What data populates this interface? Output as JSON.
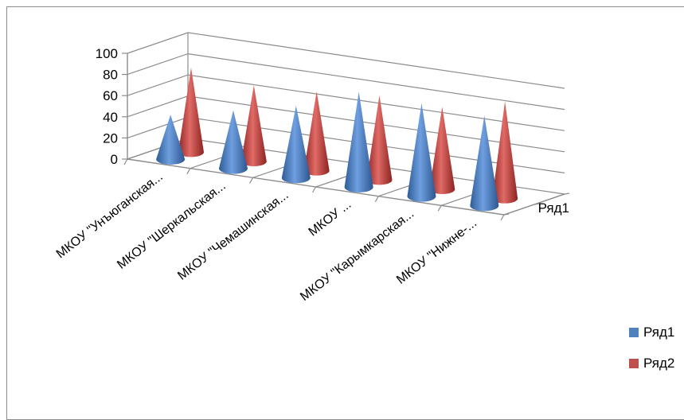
{
  "chart_data": {
    "type": "bar",
    "subtype": "3d-cone",
    "categories": [
      "МКОУ \"Унъюганская...",
      "МКОУ \"Шеркальская...",
      "МКОУ \"Чемашинская...",
      "МКОУ ...",
      "МКОУ \"Карымкарская...",
      "МКОУ \"Нижне-..."
    ],
    "series": [
      {
        "name": "Ряд1",
        "values": [
          42,
          55,
          68,
          90,
          88,
          85
        ]
      },
      {
        "name": "Ряд2",
        "values": [
          80,
          72,
          75,
          80,
          78,
          92
        ]
      }
    ],
    "y_ticks": [
      "0",
      "20",
      "40",
      "60",
      "80",
      "100"
    ],
    "ylim": [
      0,
      100
    ],
    "depth_axis_label": "Ряд1",
    "grid": true,
    "legend_position": "right",
    "colors": {
      "Ряд1": "#4f81bd",
      "Ряд2": "#c0504d"
    }
  }
}
